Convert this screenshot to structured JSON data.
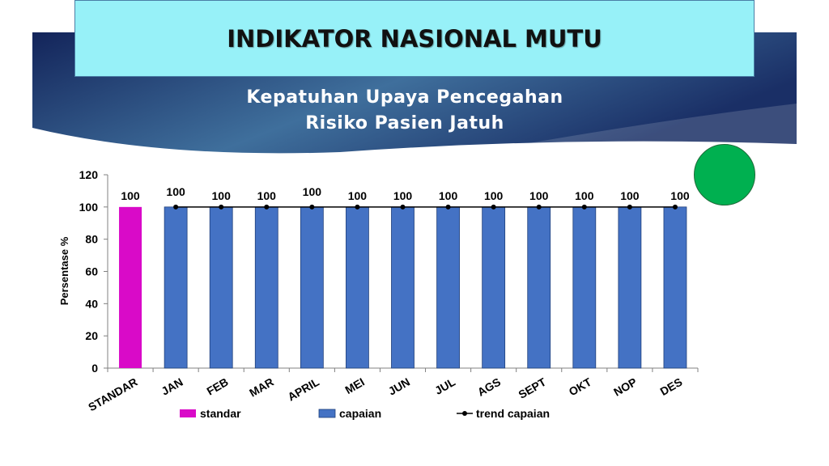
{
  "header": {
    "title": "INDIKATOR NASIONAL MUTU",
    "subtitle_line1": "Kepatuhan Upaya Pencegahan",
    "subtitle_line2": "Risiko Pasien Jatuh"
  },
  "status_indicator": {
    "color": "#00b050"
  },
  "colors": {
    "standar": "#d90ac8",
    "capaian": "#4472c4",
    "trend": "#000000",
    "banner_dark": "#13245a",
    "banner_light": "#3f6f9c"
  },
  "chart_data": {
    "type": "bar",
    "title": "",
    "xlabel": "",
    "ylabel": "Persentase %",
    "ylim": [
      0,
      120
    ],
    "yticks": [
      0,
      20,
      40,
      60,
      80,
      100,
      120
    ],
    "grid": false,
    "legend_position": "bottom",
    "categories": [
      "STANDAR",
      "JAN",
      "FEB",
      "MAR",
      "APRIL",
      "MEI",
      "JUN",
      "JUL",
      "AGS",
      "SEPT",
      "OKT",
      "NOP",
      "DES"
    ],
    "series": [
      {
        "name": "standar",
        "type": "bar",
        "values": [
          100,
          null,
          null,
          null,
          null,
          null,
          null,
          null,
          null,
          null,
          null,
          null,
          null
        ]
      },
      {
        "name": "capaian",
        "type": "bar",
        "values": [
          null,
          100,
          100,
          100,
          100,
          100,
          100,
          100,
          100,
          100,
          100,
          100,
          100
        ]
      },
      {
        "name": "trend capaian",
        "type": "line",
        "values": [
          null,
          100,
          100,
          100,
          100,
          100,
          100,
          100,
          100,
          100,
          100,
          100,
          100
        ]
      }
    ],
    "data_labels": [
      "100",
      "100",
      "100",
      "100",
      "100",
      "100",
      "100",
      "100",
      "100",
      "100",
      "100",
      "100",
      "100"
    ]
  }
}
